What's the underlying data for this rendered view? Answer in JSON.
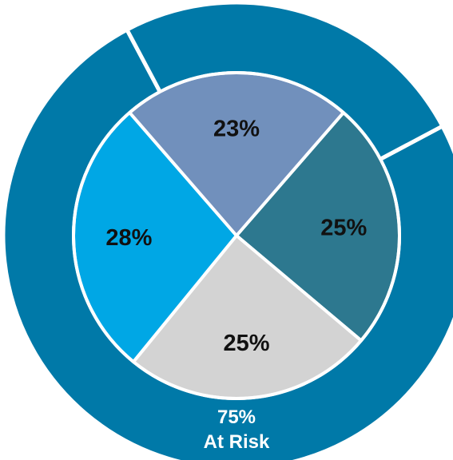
{
  "chart_data": {
    "type": "pie",
    "outer_ring": {
      "slices": [
        {
          "label": "At Risk",
          "value": 75,
          "display": "75%",
          "color": "#0079A8"
        },
        {
          "label": "",
          "value": 25,
          "display": "",
          "color": "#0079A8"
        }
      ],
      "label_value": "75%",
      "label_text": "At Risk"
    },
    "inner_pie": {
      "slices": [
        {
          "value": 25,
          "display": "25%",
          "color": "#2D788F"
        },
        {
          "value": 25,
          "display": "25%",
          "color": "#D3D3D3"
        },
        {
          "value": 28,
          "display": "28%",
          "color": "#00A7E5"
        },
        {
          "value": 23,
          "display": "23%",
          "color": "#7190BC"
        }
      ]
    },
    "separator_color": "#ffffff"
  }
}
